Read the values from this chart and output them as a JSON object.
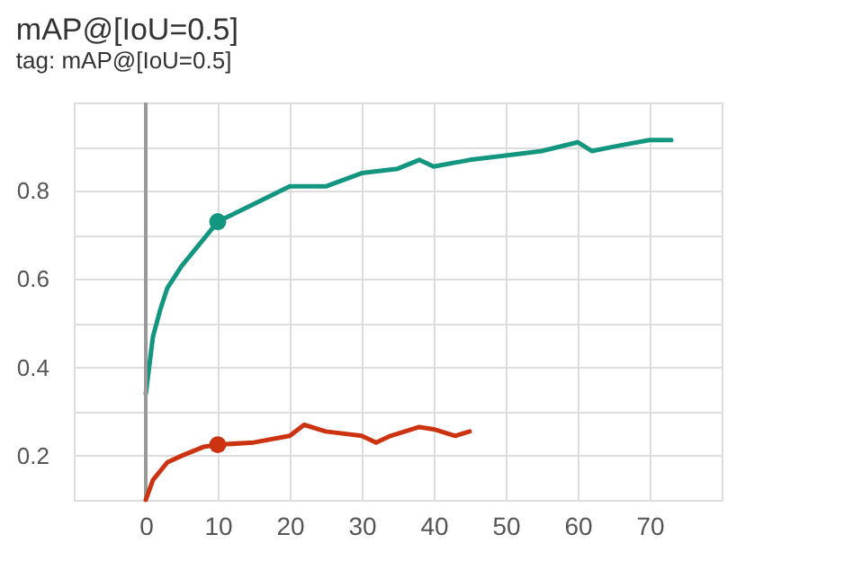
{
  "chart_data": {
    "type": "line",
    "title": "mAP@[IoU=0.5]",
    "subtitle": "tag: mAP@[IoU=0.5]",
    "xlim": [
      -10,
      80
    ],
    "xticks": [
      0,
      10,
      20,
      30,
      40,
      50,
      60,
      70
    ],
    "ylim": [
      0.1,
      1.0
    ],
    "yticks": [
      {
        "value": 0.1,
        "label": null
      },
      0.2,
      {
        "value": 0.3,
        "label": null
      },
      0.4,
      {
        "value": 0.5,
        "label": null
      },
      0.6,
      {
        "value": 0.7,
        "label": null
      },
      0.8,
      {
        "value": 0.9,
        "label": null
      }
    ],
    "grid": true,
    "legend": false,
    "line_style": "solid",
    "marker": "none",
    "ref_lines": [
      {
        "axis": "x",
        "value": 0,
        "label": null,
        "color": "#999999"
      }
    ],
    "series": [
      {
        "color": "#12967f",
        "x": [
          0,
          1,
          2,
          3,
          5,
          7,
          10,
          15,
          20,
          25,
          30,
          35,
          38,
          40,
          45,
          50,
          55,
          60,
          62,
          65,
          70,
          73
        ],
        "values": [
          0.34,
          0.47,
          0.53,
          0.58,
          0.63,
          0.67,
          0.73,
          0.77,
          0.81,
          0.81,
          0.84,
          0.85,
          0.87,
          0.855,
          0.87,
          0.88,
          0.89,
          0.91,
          0.89,
          0.9,
          0.915,
          0.915
        ]
      },
      {
        "color": "#cc3311",
        "x": [
          0,
          1,
          3,
          5,
          8,
          10,
          15,
          20,
          22,
          25,
          30,
          32,
          34,
          38,
          40,
          43,
          45
        ],
        "values": [
          0.1,
          0.145,
          0.185,
          0.2,
          0.22,
          0.225,
          0.23,
          0.245,
          0.27,
          0.255,
          0.245,
          0.23,
          0.245,
          0.265,
          0.26,
          0.245,
          0.255
        ]
      },
      {
        "type": "scatter",
        "marker": "circle",
        "color": "#12967f",
        "x": [
          10
        ],
        "values": [
          0.73
        ]
      },
      {
        "type": "scatter",
        "marker": "circle",
        "color": "#cc3311",
        "x": [
          10
        ],
        "values": [
          0.225
        ]
      }
    ]
  }
}
